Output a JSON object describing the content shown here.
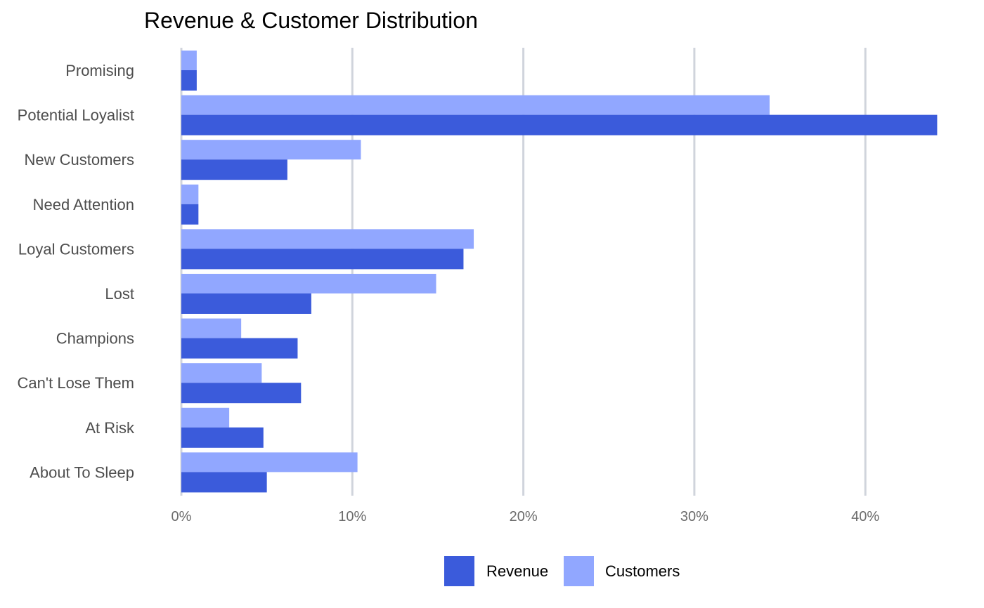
{
  "chart_data": {
    "type": "bar",
    "orientation": "horizontal",
    "title": "Revenue & Customer Distribution",
    "xlabel": "",
    "ylabel": "",
    "categories": [
      "Promising",
      "Potential Loyalist",
      "New Customers",
      "Need Attention",
      "Loyal Customers",
      "Lost",
      "Champions",
      "Can't Lose Them",
      "At Risk",
      "About To Sleep"
    ],
    "series": [
      {
        "name": "Revenue",
        "color": "#3b5bdb",
        "values": [
          0.9,
          44.2,
          6.2,
          1.0,
          16.5,
          7.6,
          6.8,
          7.0,
          4.8,
          5.0
        ]
      },
      {
        "name": "Customers",
        "color": "#91a7ff",
        "values": [
          0.9,
          34.4,
          10.5,
          1.0,
          17.1,
          14.9,
          3.5,
          4.7,
          2.8,
          10.3
        ]
      }
    ],
    "xlim": [
      0,
      45
    ],
    "xticks": [
      0,
      10,
      20,
      30,
      40
    ],
    "xtick_labels": [
      "0%",
      "10%",
      "20%",
      "30%",
      "40%"
    ],
    "grid": "vertical",
    "legend_position": "bottom"
  }
}
